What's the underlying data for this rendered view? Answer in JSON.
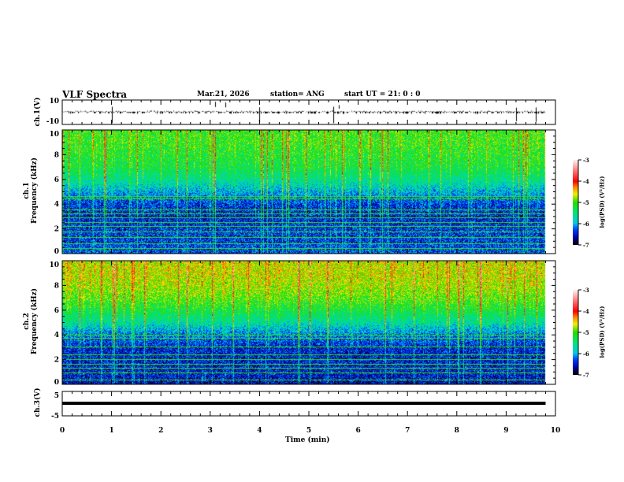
{
  "header": {
    "title": "VLF Spectra",
    "date": "Mar.21, 2026",
    "station": "station= ANG",
    "start": "start  UT =   21: 0  : 0"
  },
  "colors": {
    "waveform": "#000000",
    "background": "#ffffff"
  },
  "chart_data": [
    {
      "type": "line",
      "name": "ch1 waveform",
      "ylabel": "ch.1(V)",
      "ylim": [
        -10,
        10
      ],
      "yticks": [
        "10",
        "-10"
      ],
      "xlim": [
        0,
        10
      ],
      "description_values": {
        "baseline": 0,
        "noise_amplitude": 1,
        "spike_times_min": [
          1.0,
          3.1,
          3.3,
          4.0,
          5.5,
          5.6,
          9.2,
          9.6
        ]
      }
    },
    {
      "type": "heatmap",
      "name": "ch1 spectrogram",
      "ylabel": "ch.1\nFrequency (kHz)",
      "ylabel_line1": "ch.1",
      "ylabel_line2": "Frequency (kHz)",
      "ylim": [
        0,
        10
      ],
      "yticks": [
        "0",
        "2",
        "4",
        "6",
        "8",
        "10"
      ],
      "xlim": [
        0,
        10
      ],
      "data_end_min": 9.8,
      "freq_khz": [
        0,
        1,
        2,
        3,
        4,
        5,
        6,
        7,
        8,
        9,
        10
      ],
      "mean_log_psd": [
        -6.3,
        -6.4,
        -6.4,
        -6.5,
        -6.4,
        -6.0,
        -5.6,
        -5.3,
        -5.2,
        -5.1,
        -5.1
      ],
      "line_freqs_khz": [
        0.4,
        0.8,
        1.3,
        1.7,
        2.2,
        2.5,
        2.9,
        3.2,
        3.5,
        4.4,
        4.6
      ],
      "colorbar": {
        "label": "log(PSD) (V²/Hz)",
        "range": [
          -7,
          -3
        ],
        "ticks": [
          "-3",
          "-4",
          "-5",
          "-6",
          "-7"
        ]
      }
    },
    {
      "type": "heatmap",
      "name": "ch2 spectrogram",
      "ylabel_line1": "ch.2",
      "ylabel_line2": "Frequency (kHz)",
      "ylim": [
        0,
        10
      ],
      "yticks": [
        "0",
        "2",
        "4",
        "6",
        "8",
        "10"
      ],
      "xlim": [
        0,
        10
      ],
      "data_end_min": 9.8,
      "freq_khz": [
        0,
        1,
        2,
        3,
        4,
        5,
        6,
        7,
        8,
        9,
        10
      ],
      "mean_log_psd": [
        -6.6,
        -6.5,
        -6.5,
        -6.5,
        -6.2,
        -5.7,
        -5.3,
        -5.0,
        -4.8,
        -4.7,
        -4.7
      ],
      "line_freqs_khz": [
        0.3,
        0.9,
        1.3,
        1.6,
        2.0,
        2.4,
        3.0,
        3.7,
        4.0
      ],
      "colorbar": {
        "label": "log(PSD) (V²/Hz)",
        "range": [
          -7,
          -3
        ],
        "ticks": [
          "-3",
          "-4",
          "-5",
          "-6",
          "-7"
        ]
      }
    },
    {
      "type": "line",
      "name": "ch3 waveform",
      "ylabel": "ch.3(V)",
      "ylim": [
        -5,
        5
      ],
      "yticks": [
        "5",
        "-5"
      ],
      "xlim": [
        0,
        10
      ],
      "description_values": {
        "constant_value": -1.3
      }
    }
  ],
  "xaxis": {
    "label": "Time (min)",
    "ticks": [
      "0",
      "1",
      "2",
      "3",
      "4",
      "5",
      "6",
      "7",
      "8",
      "9",
      "10"
    ]
  }
}
